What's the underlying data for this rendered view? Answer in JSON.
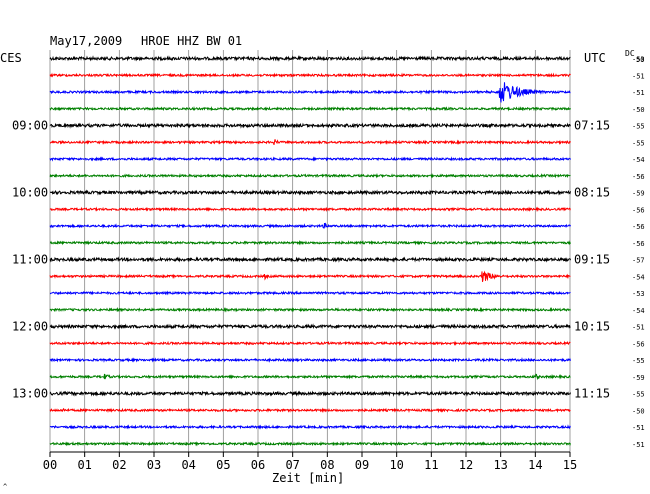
{
  "header": {
    "date": "May17,2009",
    "station": "HROE HHZ BW 01",
    "left_tz": "CES",
    "right_tz": "UTC",
    "dc_label": "DC",
    "dc_top": "50"
  },
  "footer": {
    "xlabel": "Zeit [min]",
    "corner_mark": "^"
  },
  "colors": {
    "trace_cycle": [
      "#000000",
      "#ff0000",
      "#0000ff",
      "#008000"
    ],
    "grid": "#888888"
  },
  "chart_data": {
    "type": "line",
    "title": "May17,2009  HROE HHZ BW 01",
    "xlabel": "Zeit [min]",
    "xlim": [
      0,
      15
    ],
    "x_ticks": [
      "00",
      "01",
      "02",
      "03",
      "04",
      "05",
      "06",
      "07",
      "08",
      "09",
      "10",
      "11",
      "12",
      "13",
      "14",
      "15"
    ],
    "n_traces": 24,
    "line_minutes": 15,
    "left_time_labels": [
      {
        "trace": 4,
        "label": "09:00"
      },
      {
        "trace": 8,
        "label": "10:00"
      },
      {
        "trace": 12,
        "label": "11:00"
      },
      {
        "trace": 16,
        "label": "12:00"
      },
      {
        "trace": 20,
        "label": "13:00"
      }
    ],
    "right_time_labels": [
      {
        "trace": 4,
        "label": "07:15"
      },
      {
        "trace": 8,
        "label": "08:15"
      },
      {
        "trace": 12,
        "label": "09:15"
      },
      {
        "trace": 16,
        "label": "10:15"
      },
      {
        "trace": 20,
        "label": "11:15"
      }
    ],
    "dc_offsets": [
      "-53",
      "-51",
      "-51",
      "-50",
      "-55",
      "-55",
      "-54",
      "-56",
      "-59",
      "-56",
      "-56",
      "-56",
      "-57",
      "-54",
      "-53",
      "-54",
      "-51",
      "-56",
      "-55",
      "-59",
      "-55",
      "-50",
      "-51",
      "-51"
    ],
    "events": [
      {
        "trace": 2,
        "minute": 13.0,
        "amplitude": 12,
        "duration_min": 1.6,
        "label": ""
      },
      {
        "trace": 5,
        "minute": 6.5,
        "amplitude": 3,
        "duration_min": 0.3,
        "label": ""
      },
      {
        "trace": 10,
        "minute": 7.9,
        "amplitude": 3,
        "duration_min": 0.4,
        "label": ""
      },
      {
        "trace": 13,
        "minute": 12.5,
        "amplitude": 6,
        "duration_min": 0.9,
        "label": ""
      },
      {
        "trace": 13,
        "minute": 6.2,
        "amplitude": 3,
        "duration_min": 0.2,
        "label": ""
      },
      {
        "trace": 19,
        "minute": 1.6,
        "amplitude": 3,
        "duration_min": 0.4,
        "label": ""
      },
      {
        "trace": 19,
        "minute": 14.0,
        "amplitude": 3,
        "duration_min": 0.4,
        "label": ""
      },
      {
        "trace": 21,
        "minute": 0.4,
        "amplitude": 2,
        "duration_min": 0.3,
        "label": ""
      }
    ],
    "grid": true
  }
}
